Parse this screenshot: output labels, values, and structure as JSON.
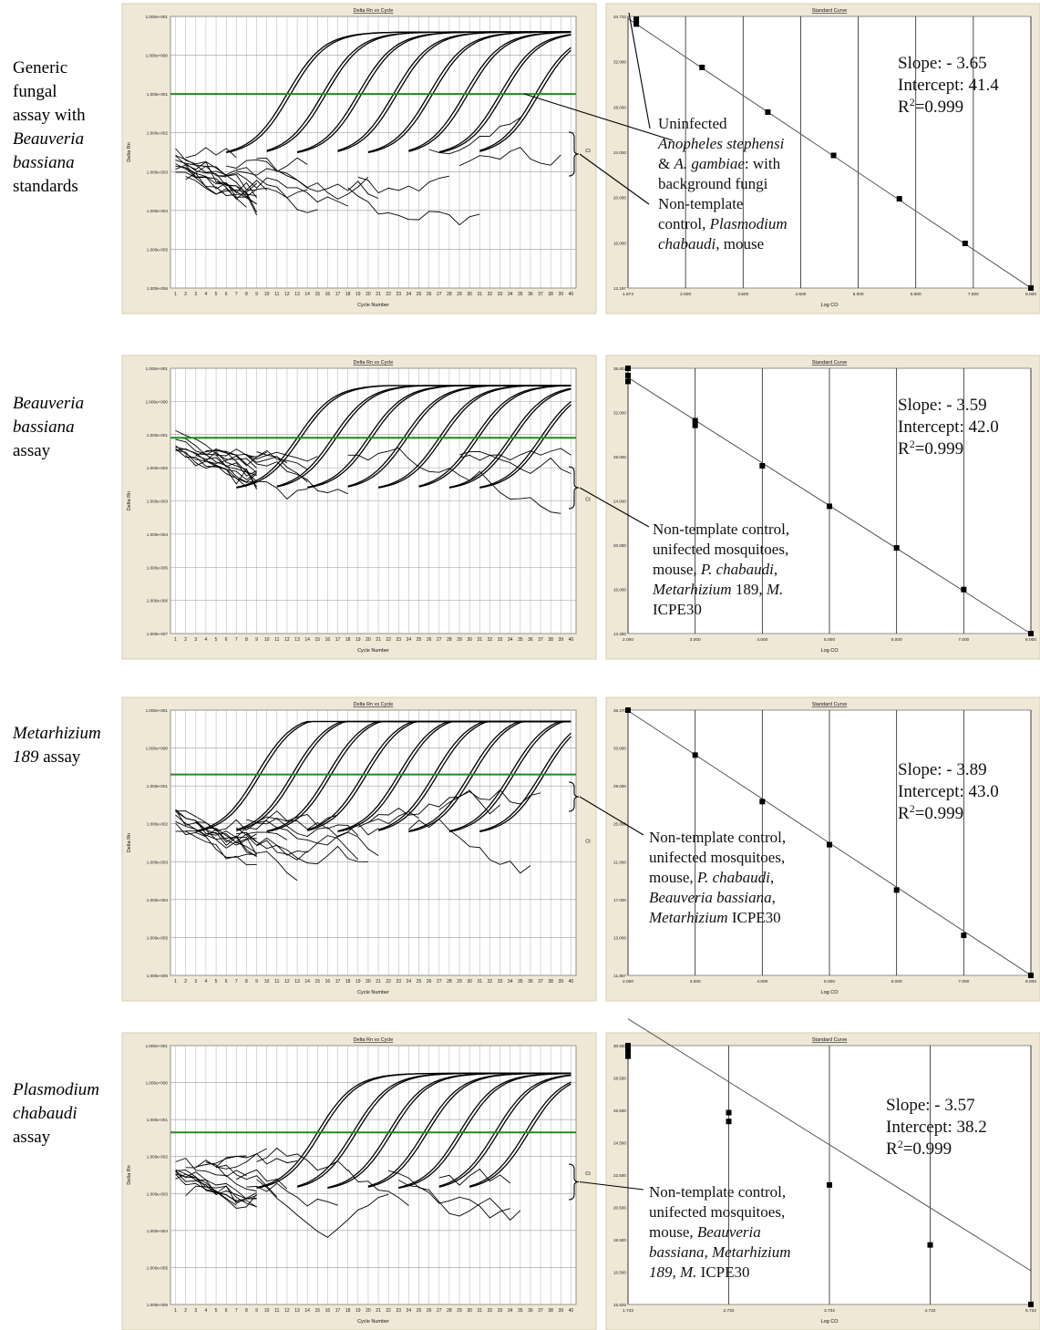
{
  "figure": {
    "panel_title_left": "Delta Rn vs Cycle",
    "panel_title_right": "Standard Curve",
    "x_label_left": "Cycle Number",
    "x_label_right": "Log CO",
    "y_label_left": "Delta Rn",
    "y_label_right": "Ct",
    "colors": {
      "threshold": "#1f8a1f",
      "panel_bg": "#efe8d7",
      "plot_bg": "#ffffff",
      "curve": "#000000",
      "grid": "#bdbdbd"
    }
  },
  "rows": [
    {
      "label_parts": [
        {
          "text": "Generic",
          "italic": false
        },
        {
          "text": "fungal",
          "italic": false
        },
        {
          "text": "assay with",
          "italic": false
        },
        {
          "text": "Beauveria",
          "italic": true
        },
        {
          "text": "bassiana",
          "italic": true
        },
        {
          "text": "standards",
          "italic": false
        }
      ],
      "stats": {
        "slope": "Slope: - 3.65",
        "intercept": "Intercept: 41.4",
        "r2_prefix": "R",
        "r2_sup": "2",
        "r2_value": "=0.999"
      },
      "annotations": [
        {
          "id": "a1",
          "lines": [
            [
              {
                "t": "Uninfected",
                "i": false
              }
            ],
            [
              {
                "t": "Anopheles stephensi",
                "i": true
              }
            ],
            [
              {
                "t": "& ",
                "i": false
              },
              {
                "t": "A. gambiae",
                "i": true
              },
              {
                "t": ": with",
                "i": false
              }
            ],
            [
              {
                "t": "background fungi",
                "i": false
              }
            ]
          ]
        },
        {
          "id": "a2",
          "lines": [
            [
              {
                "t": "Non-template",
                "i": false
              }
            ],
            [
              {
                "t": "control, ",
                "i": false
              },
              {
                "t": "Plasmodium",
                "i": true
              }
            ],
            [
              {
                "t": "chabaudi",
                "i": true
              },
              {
                "t": ", mouse",
                "i": false
              }
            ]
          ]
        }
      ],
      "chart_data": {
        "amplification": {
          "type": "line",
          "title": "Delta Rn vs Cycle",
          "xlabel": "Cycle Number",
          "ylabel": "Delta Rn",
          "y_scale": "log",
          "x_ticks": [
            1,
            2,
            3,
            4,
            5,
            6,
            7,
            8,
            9,
            10,
            11,
            12,
            13,
            14,
            15,
            16,
            17,
            18,
            19,
            20,
            21,
            22,
            23,
            24,
            25,
            26,
            27,
            28,
            29,
            30,
            31,
            32,
            33,
            34,
            35,
            36,
            37,
            38,
            39,
            40
          ],
          "y_ticks": [
            "1.000e-006",
            "1.000e-005",
            "1.000e-004",
            "1.000e-003",
            "1.000e-002",
            "1.000e-001",
            "1.000e+000",
            "1.000e+001"
          ],
          "ylim_exp": [
            -6,
            1
          ],
          "threshold": 0.1,
          "amp_midpoints": [
            12,
            15.5,
            19,
            22.5,
            26,
            29.5,
            33,
            36.5
          ],
          "plateau": 4,
          "baseline_start": 0.0015
        },
        "standard_curve": {
          "type": "scatter",
          "title": "Standard Curve",
          "xlabel": "Log CO",
          "ylabel": "Ct",
          "x_ticks": [
            "1.874",
            "2.500",
            "3.500",
            "4.500",
            "5.500",
            "6.500",
            "7.500",
            "8.000"
          ],
          "y_ticks": [
            "12.197",
            "16.000",
            "20.000",
            "24.000",
            "28.000",
            "32.000",
            "34.733"
          ],
          "xlim": [
            1.874,
            8.0
          ],
          "ylim": [
            12.197,
            34.733
          ],
          "points_x": [
            2.0,
            2.0,
            3.0,
            4.0,
            5.0,
            6.0,
            7.0,
            8.0
          ],
          "points_y": [
            34.1,
            34.5,
            30.5,
            26.8,
            23.2,
            19.6,
            15.9,
            12.2
          ],
          "slope": -3.65,
          "intercept": 41.4
        }
      }
    },
    {
      "label_parts": [
        {
          "text": "Beauveria",
          "italic": true
        },
        {
          "text": "bassiana",
          "italic": true
        },
        {
          "text": "assay",
          "italic": false
        }
      ],
      "stats": {
        "slope": "Slope: - 3.59",
        "intercept": "Intercept: 42.0",
        "r2_prefix": "R",
        "r2_sup": "2",
        "r2_value": "=0.999"
      },
      "annotations": [
        {
          "id": "b1",
          "lines": [
            [
              {
                "t": "Non-template control,",
                "i": false
              }
            ],
            [
              {
                "t": "unifected mosquitoes,",
                "i": false
              }
            ],
            [
              {
                "t": "mouse, ",
                "i": false
              },
              {
                "t": "P. chabaudi",
                "i": true
              },
              {
                "t": ",",
                "i": false
              }
            ],
            [
              {
                "t": "Metarhizium",
                "i": true
              },
              {
                "t": " 189, ",
                "i": false
              },
              {
                "t": "M.",
                "i": true
              }
            ],
            [
              {
                "t": "ICPE30",
                "i": false
              }
            ]
          ]
        }
      ],
      "chart_data": {
        "amplification": {
          "type": "line",
          "title": "Delta Rn vs Cycle",
          "xlabel": "Cycle Number",
          "ylabel": "Delta Rn",
          "y_scale": "log",
          "x_ticks": [
            1,
            2,
            3,
            4,
            5,
            6,
            7,
            8,
            9,
            10,
            11,
            12,
            13,
            14,
            15,
            16,
            17,
            18,
            19,
            20,
            21,
            22,
            23,
            24,
            25,
            26,
            27,
            28,
            29,
            30,
            31,
            32,
            33,
            34,
            35,
            36,
            37,
            38,
            39,
            40
          ],
          "y_ticks": [
            "1.000e-007",
            "1.000e-006",
            "1.000e-005",
            "1.000e-004",
            "1.000e-003",
            "1.000e-002",
            "1.000e-001",
            "1.000e+000",
            "1.000e+001"
          ],
          "ylim_exp": [
            -7,
            1
          ],
          "threshold": 0.08,
          "amp_midpoints": [
            13,
            16.5,
            20,
            23.5,
            27,
            30.5,
            34,
            37
          ],
          "plateau": 3,
          "baseline_start": 0.05
        },
        "standard_curve": {
          "type": "scatter",
          "title": "Standard Curve",
          "xlabel": "Log CO",
          "ylabel": "Ct",
          "x_ticks": [
            "2.000",
            "3.000",
            "4.000",
            "5.000",
            "6.000",
            "7.000",
            "8.000"
          ],
          "y_ticks": [
            "13.300",
            "16.000",
            "20.000",
            "24.000",
            "28.000",
            "32.000",
            "35.602"
          ],
          "xlim": [
            2.0,
            8.0
          ],
          "ylim": [
            13.3,
            35.602
          ],
          "points_x": [
            2.0,
            2.0,
            2.0,
            3.0,
            3.0,
            4.0,
            5.0,
            6.0,
            7.0,
            8.0
          ],
          "points_y": [
            35.6,
            35.0,
            34.5,
            31.2,
            30.8,
            27.4,
            24.0,
            20.5,
            17.0,
            13.3
          ],
          "slope": -3.59,
          "intercept": 42.0
        }
      }
    },
    {
      "label_parts": [
        {
          "text": "Metarhizium",
          "italic": true
        },
        {
          "text": "189",
          "italic": true,
          "suffix": " assay"
        }
      ],
      "stats": {
        "slope": "Slope: - 3.89",
        "intercept": "Intercept: 43.0",
        "r2_prefix": "R",
        "r2_sup": "2",
        "r2_value": "=0.999"
      },
      "annotations": [
        {
          "id": "c1",
          "lines": [
            [
              {
                "t": "Non-template control,",
                "i": false
              }
            ],
            [
              {
                "t": "unifected mosquitoes,",
                "i": false
              }
            ],
            [
              {
                "t": "mouse, ",
                "i": false
              },
              {
                "t": "P. chabaudi",
                "i": true
              },
              {
                "t": ",",
                "i": false
              }
            ],
            [
              {
                "t": "Beauveria bassiana",
                "i": true
              },
              {
                "t": ",",
                "i": false
              }
            ],
            [
              {
                "t": "Metarhizium",
                "i": true
              },
              {
                "t": " ICPE30",
                "i": false
              }
            ]
          ]
        }
      ],
      "chart_data": {
        "amplification": {
          "type": "line",
          "title": "Delta Rn vs Cycle",
          "xlabel": "Cycle Number",
          "ylabel": "Delta Rn",
          "y_scale": "log",
          "x_ticks": [
            1,
            2,
            3,
            4,
            5,
            6,
            7,
            8,
            9,
            10,
            11,
            12,
            13,
            14,
            15,
            16,
            17,
            18,
            19,
            20,
            21,
            22,
            23,
            24,
            25,
            26,
            27,
            28,
            29,
            30,
            31,
            32,
            33,
            34,
            35,
            36,
            37,
            38,
            39,
            40
          ],
          "y_ticks": [
            "1.000e-006",
            "1.000e-005",
            "1.000e-004",
            "1.000e-003",
            "1.000e-002",
            "1.000e-001",
            "1.000e+000",
            "1.000e+001"
          ],
          "ylim_exp": [
            -6,
            1
          ],
          "threshold": 0.2,
          "amp_midpoints": [
            9,
            12.5,
            16,
            19.5,
            23,
            26.5,
            30,
            34,
            37
          ],
          "plateau": 5,
          "baseline_start": 0.01
        },
        "standard_curve": {
          "type": "scatter",
          "title": "Standard Curve",
          "xlabel": "Log CO",
          "ylabel": "Ct",
          "x_ticks": [
            "2.000",
            "3.000",
            "4.000",
            "5.000",
            "6.000",
            "7.000",
            "8.000"
          ],
          "y_ticks": [
            "11.867",
            "13.000",
            "17.000",
            "21.000",
            "25.000",
            "29.000",
            "33.000",
            "35.270"
          ],
          "xlim": [
            2.0,
            8.0
          ],
          "ylim": [
            11.867,
            35.27
          ],
          "points_x": [
            2.0,
            3.0,
            4.0,
            5.0,
            6.0,
            7.0,
            8.0
          ],
          "points_y": [
            35.27,
            31.3,
            27.2,
            23.4,
            19.4,
            15.4,
            11.87
          ],
          "slope": -3.89,
          "intercept": 43.0
        }
      }
    },
    {
      "label_parts": [
        {
          "text": "Plasmodium",
          "italic": true
        },
        {
          "text": "chabaudi",
          "italic": true
        },
        {
          "text": "assay",
          "italic": false
        }
      ],
      "stats": {
        "slope": "Slope: - 3.57",
        "intercept": "Intercept: 38.2",
        "r2_prefix": "R",
        "r2_sup": "2",
        "r2_value": "=0.999"
      },
      "annotations": [
        {
          "id": "d1",
          "lines": [
            [
              {
                "t": "Non-template control,",
                "i": false
              }
            ],
            [
              {
                "t": "unifected mosquitoes,",
                "i": false
              }
            ],
            [
              {
                "t": "mouse, ",
                "i": false
              },
              {
                "t": "Beauveria",
                "i": true
              }
            ],
            [
              {
                "t": "bassiana, Metarhizium",
                "i": true
              }
            ],
            [
              {
                "t": "189, M.",
                "i": true
              },
              {
                "t": " ICPE30",
                "i": false
              }
            ]
          ]
        }
      ],
      "chart_data": {
        "amplification": {
          "type": "line",
          "title": "Delta Rn vs Cycle",
          "xlabel": "Cycle Number",
          "ylabel": "Delta Rn",
          "y_scale": "log",
          "x_ticks": [
            1,
            2,
            3,
            4,
            5,
            6,
            7,
            8,
            9,
            10,
            11,
            12,
            13,
            14,
            15,
            16,
            17,
            18,
            19,
            20,
            21,
            22,
            23,
            24,
            25,
            26,
            27,
            28,
            29,
            30,
            31,
            32,
            33,
            34,
            35,
            36,
            37,
            38,
            39,
            40
          ],
          "y_ticks": [
            "1.000e-006",
            "1.000e-005",
            "1.000e-004",
            "1.000e-003",
            "1.000e-002",
            "1.000e-001",
            "1.000e+000",
            "1.000e+001"
          ],
          "ylim_exp": [
            -6,
            1
          ],
          "threshold": 0.045,
          "amp_midpoints": [
            15,
            18.5,
            22,
            25.5,
            29,
            32.5,
            35.5
          ],
          "plateau": 3.5,
          "baseline_start": 0.004
        },
        "standard_curve": {
          "type": "scatter",
          "title": "Standard Curve",
          "xlabel": "Log CO",
          "ylabel": "Ct",
          "x_ticks": [
            "1.732",
            "2.732",
            "3.732",
            "4.732",
            "5.732"
          ],
          "y_ticks": [
            "15.825",
            "16.500",
            "18.500",
            "20.500",
            "22.500",
            "24.500",
            "26.500",
            "28.500",
            "30.500"
          ],
          "xlim": [
            1.732,
            5.732
          ],
          "ylim": [
            15.825,
            30.5
          ],
          "points_x": [
            1.732,
            1.732,
            1.732,
            2.732,
            2.732,
            3.732,
            4.732,
            5.732
          ],
          "points_y": [
            30.5,
            30.2,
            29.9,
            26.7,
            26.2,
            22.6,
            19.2,
            15.83
          ],
          "slope": -3.57,
          "intercept": 38.2
        }
      }
    }
  ]
}
